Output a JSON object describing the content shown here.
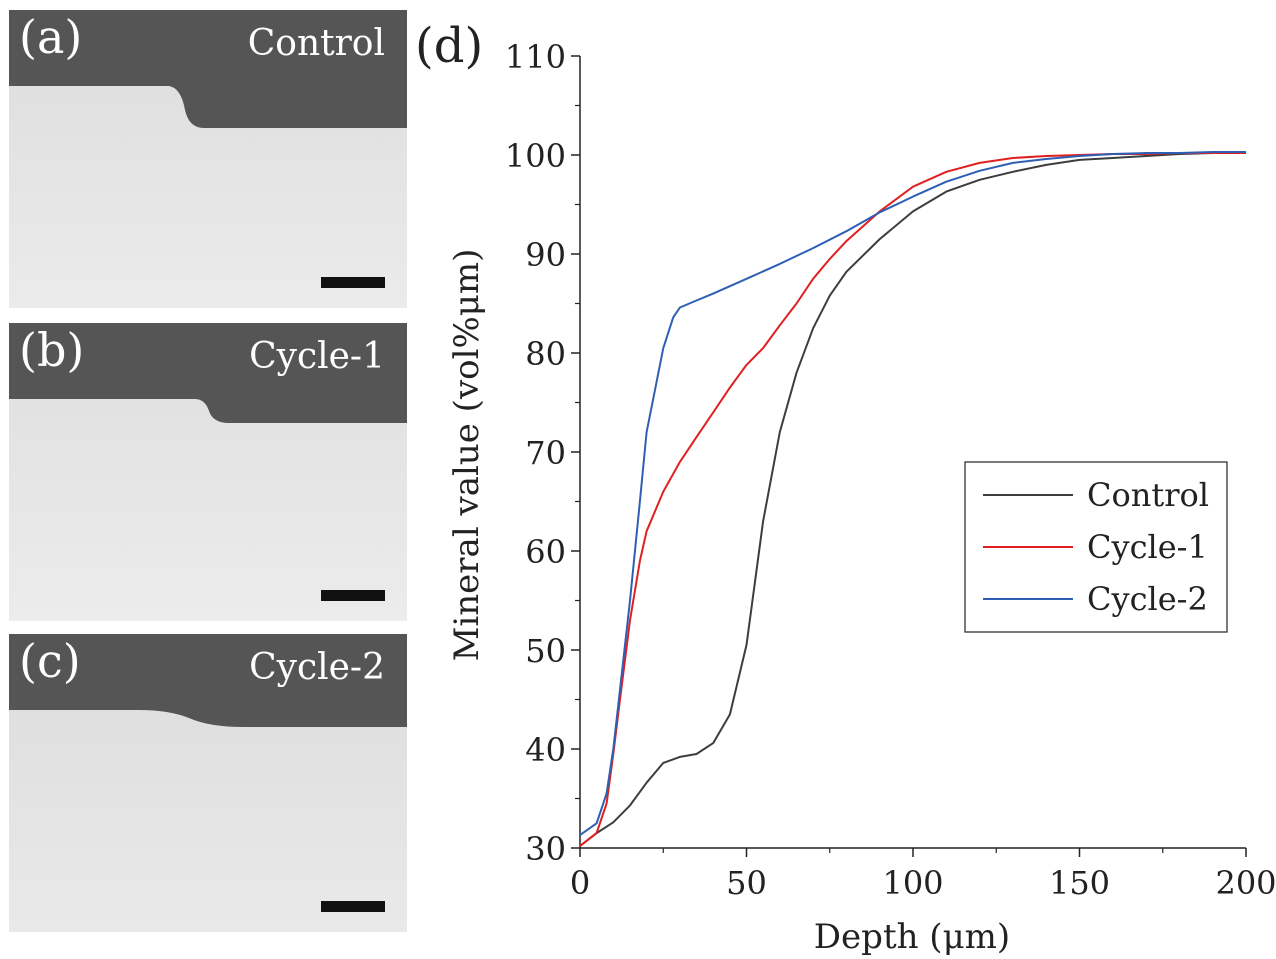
{
  "panels": [
    {
      "id": "a",
      "letter": "(a)",
      "label": "Control"
    },
    {
      "id": "b",
      "letter": "(b)",
      "label": "Cycle-1"
    },
    {
      "id": "c",
      "letter": "(c)",
      "label": "Cycle-2"
    }
  ],
  "chart_panel_letter": "(d)",
  "chart_data": {
    "type": "line",
    "xlabel": "Depth (μm)",
    "ylabel": "Mineral value (vol%μm)",
    "xlim": [
      0,
      200
    ],
    "ylim": [
      30,
      110
    ],
    "xticks": [
      0,
      50,
      100,
      150,
      200
    ],
    "yticks": [
      30,
      40,
      50,
      60,
      70,
      80,
      90,
      100,
      110
    ],
    "grid": false,
    "legend_position": "center-right",
    "series": [
      {
        "name": "Control",
        "color": "#3d3d3d",
        "x": [
          0,
          5,
          10,
          15,
          20,
          25,
          30,
          35,
          40,
          45,
          50,
          55,
          60,
          65,
          70,
          75,
          80,
          90,
          100,
          110,
          120,
          130,
          140,
          150,
          160,
          170,
          180,
          190,
          200
        ],
        "y": [
          30.2,
          31.5,
          32.6,
          34.3,
          36.6,
          38.6,
          39.2,
          39.5,
          40.6,
          43.5,
          50.5,
          63.0,
          72.0,
          78.0,
          82.5,
          85.8,
          88.2,
          91.5,
          94.3,
          96.3,
          97.5,
          98.3,
          99.0,
          99.5,
          99.7,
          99.9,
          100.1,
          100.2,
          100.3
        ]
      },
      {
        "name": "Cycle-1",
        "color": "#e02020",
        "x": [
          0,
          5,
          8,
          10,
          12,
          15,
          18,
          20,
          25,
          30,
          35,
          40,
          45,
          50,
          55,
          60,
          65,
          70,
          75,
          80,
          90,
          100,
          110,
          120,
          130,
          140,
          150,
          160,
          170,
          180,
          190,
          200
        ],
        "y": [
          30.2,
          31.5,
          34.5,
          39.5,
          45.0,
          53.0,
          59.0,
          62.0,
          66.0,
          69.0,
          71.5,
          74.0,
          76.5,
          78.8,
          80.5,
          82.8,
          85.0,
          87.5,
          89.5,
          91.3,
          94.3,
          96.8,
          98.3,
          99.2,
          99.7,
          99.9,
          100.0,
          100.1,
          100.1,
          100.2,
          100.2,
          100.2
        ]
      },
      {
        "name": "Cycle-2",
        "color": "#2e5fb5",
        "x": [
          0,
          5,
          8,
          10,
          12,
          15,
          18,
          20,
          25,
          28,
          30,
          35,
          40,
          50,
          60,
          70,
          80,
          90,
          100,
          110,
          120,
          130,
          140,
          150,
          160,
          170,
          180,
          190,
          200
        ],
        "y": [
          31.3,
          32.5,
          35.5,
          40.0,
          46.0,
          55.0,
          65.0,
          72.0,
          80.5,
          83.6,
          84.6,
          85.3,
          86.0,
          87.5,
          89.0,
          90.6,
          92.3,
          94.2,
          95.8,
          97.3,
          98.4,
          99.2,
          99.6,
          99.9,
          100.1,
          100.2,
          100.2,
          100.3,
          100.3
        ]
      }
    ]
  }
}
